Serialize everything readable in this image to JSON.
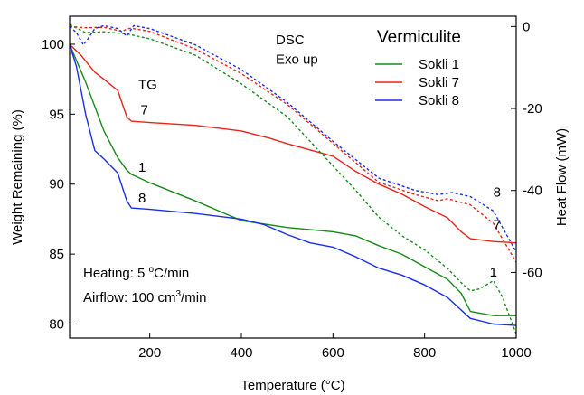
{
  "chart_data": {
    "type": "line",
    "title": "",
    "xlabel": "Temperature (°C)",
    "ylabel": "Weight Remaining (%)",
    "y2label": "Heat Flow (mW)",
    "xlim": [
      25,
      1000
    ],
    "ylim": [
      79,
      102
    ],
    "y2lim": [
      -76,
      2.5
    ],
    "x_ticks": [
      200,
      400,
      600,
      800,
      1000
    ],
    "y_ticks": [
      80,
      85,
      90,
      95,
      100
    ],
    "y2_ticks": [
      0,
      -20,
      -40,
      -60
    ],
    "grid": false,
    "legend": {
      "title": "Vermiculite",
      "position": "top-right",
      "entries": [
        "Sokli 1",
        "Sokli 7",
        "Sokli 8"
      ]
    },
    "series": [
      {
        "name": "Sokli 1",
        "kind": "TG",
        "axis": "left",
        "dashed": false,
        "color": "#1a8a1a",
        "x": [
          25,
          60,
          100,
          130,
          150,
          160,
          200,
          300,
          400,
          500,
          600,
          650,
          700,
          750,
          800,
          850,
          880,
          900,
          950,
          1000
        ],
        "y": [
          100,
          97.3,
          93.8,
          91.9,
          91.0,
          90.7,
          90.1,
          88.8,
          87.4,
          86.9,
          86.6,
          86.3,
          85.6,
          85.0,
          84.1,
          83.2,
          82.2,
          80.9,
          80.6,
          80.6
        ]
      },
      {
        "name": "Sokli 7",
        "kind": "TG",
        "axis": "left",
        "dashed": false,
        "color": "#e8241a",
        "x": [
          25,
          50,
          80,
          100,
          130,
          150,
          160,
          200,
          300,
          400,
          460,
          500,
          600,
          650,
          700,
          750,
          800,
          850,
          880,
          900,
          950,
          1000
        ],
        "y": [
          100,
          99.2,
          98.0,
          97.5,
          96.7,
          94.8,
          94.5,
          94.4,
          94.2,
          93.8,
          93.3,
          92.9,
          92.0,
          90.9,
          90.0,
          89.3,
          88.4,
          87.6,
          86.6,
          86.1,
          85.9,
          85.8
        ]
      },
      {
        "name": "Sokli 8",
        "kind": "TG",
        "axis": "left",
        "dashed": false,
        "color": "#1a2ee8",
        "x": [
          25,
          40,
          60,
          80,
          100,
          130,
          150,
          160,
          200,
          300,
          400,
          450,
          500,
          550,
          600,
          650,
          700,
          750,
          800,
          850,
          900,
          950,
          1000
        ],
        "y": [
          100,
          98.4,
          95.0,
          92.4,
          91.8,
          90.8,
          88.8,
          88.3,
          88.2,
          87.9,
          87.5,
          87.1,
          86.4,
          85.8,
          85.5,
          84.8,
          84.0,
          83.5,
          82.8,
          81.9,
          80.4,
          80.0,
          79.9
        ]
      },
      {
        "name": "Sokli 1",
        "kind": "DSC",
        "axis": "right",
        "dashed": true,
        "color": "#1a8a1a",
        "x": [
          25,
          60,
          100,
          150,
          200,
          300,
          400,
          500,
          600,
          650,
          700,
          750,
          800,
          850,
          880,
          900,
          920,
          950,
          970,
          1000
        ],
        "y": [
          0.5,
          -1.5,
          -1.3,
          -1.8,
          -3.0,
          -7.0,
          -14.0,
          -22.0,
          -34.0,
          -40.0,
          -46.5,
          -51.0,
          -54.5,
          -59.0,
          -62.5,
          -64.5,
          -64.0,
          -62.0,
          -66.0,
          -75.0
        ]
      },
      {
        "name": "Sokli 7",
        "kind": "DSC",
        "axis": "right",
        "dashed": true,
        "color": "#e8241a",
        "x": [
          25,
          60,
          100,
          140,
          150,
          160,
          200,
          300,
          400,
          500,
          600,
          700,
          780,
          830,
          850,
          900,
          950,
          1000
        ],
        "y": [
          0,
          -0.3,
          -0.2,
          -1.2,
          -0.6,
          -0.4,
          -1.2,
          -5.5,
          -11.5,
          -19.0,
          -28.5,
          -38.0,
          -41.0,
          -42.5,
          -42.0,
          -43.5,
          -48.0,
          -57.5
        ]
      },
      {
        "name": "Sokli 8",
        "kind": "DSC",
        "axis": "right",
        "dashed": true,
        "color": "#1a2ee8",
        "x": [
          25,
          40,
          55,
          65,
          80,
          100,
          130,
          150,
          165,
          200,
          300,
          400,
          500,
          600,
          700,
          780,
          830,
          860,
          900,
          950,
          1000
        ],
        "y": [
          0,
          -1.5,
          -4.5,
          -3.0,
          -0.5,
          0.2,
          -0.5,
          -2.3,
          0.2,
          -0.5,
          -4.5,
          -10.5,
          -18.5,
          -28.0,
          -37.0,
          -40.0,
          -41.0,
          -40.5,
          -41.5,
          -45.0,
          -55.0
        ]
      }
    ],
    "annotations": [
      {
        "text": "DSC",
        "x": 475,
        "y": 100.0
      },
      {
        "text": "Exo up",
        "x": 475,
        "y": 98.6
      },
      {
        "text": "TG",
        "x": 175,
        "y": 96.8
      },
      {
        "text": "7",
        "x": 180,
        "y": 95.0
      },
      {
        "text": "1",
        "x": 175,
        "y": 90.9
      },
      {
        "text": "8",
        "x": 175,
        "y": 88.7
      },
      {
        "text": "8",
        "x": 950,
        "y": 89.1
      },
      {
        "text": "7",
        "x": 950,
        "y": 86.8
      },
      {
        "text": "1",
        "x": 942,
        "y": 83.4
      }
    ],
    "conditions": {
      "heating_prefix": "Heating: 5 ",
      "heating_unit": "C/min",
      "heating_deg": "o",
      "airflow_prefix": "Airflow: 100 cm",
      "airflow_sup": "3",
      "airflow_unit": "/min"
    }
  }
}
